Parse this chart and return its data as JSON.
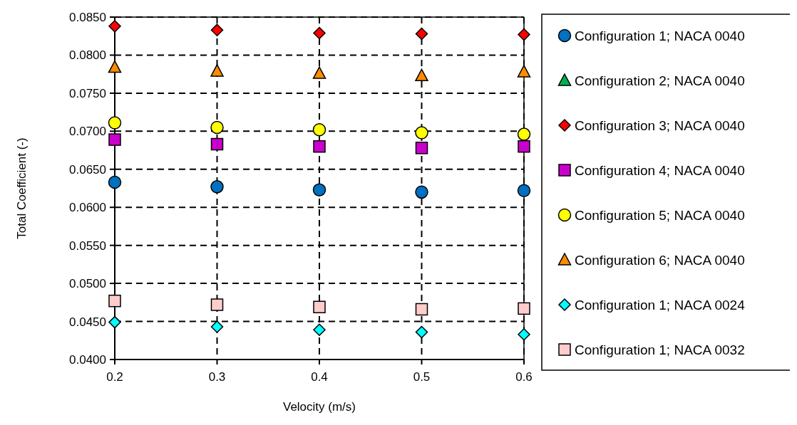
{
  "chart_data": {
    "type": "scatter",
    "xlabel": "Velocity (m/s)",
    "ylabel": "Total Coefficient (-)",
    "x": [
      0.2,
      0.3,
      0.4,
      0.5,
      0.6
    ],
    "xlim": [
      0.2,
      0.6
    ],
    "xticks": [
      0.2,
      0.3,
      0.4,
      0.5,
      0.6
    ],
    "ylim": [
      0.04,
      0.085
    ],
    "yticks": [
      {
        "value": 0.04,
        "label": "0.0400"
      },
      {
        "value": 0.045,
        "label": "0.0450"
      },
      {
        "value": 0.05,
        "label": "0.0500"
      },
      {
        "value": 0.055,
        "label": "0.0550"
      },
      {
        "value": 0.06,
        "label": "0.0600"
      },
      {
        "value": 0.065,
        "label": "0.0650"
      },
      {
        "value": 0.07,
        "label": "0.0700"
      },
      {
        "value": 0.075,
        "label": "0.0750"
      },
      {
        "value": 0.08,
        "label": "0.0800"
      },
      {
        "value": 0.085,
        "label": "0.0850"
      }
    ],
    "grid": true,
    "legend": "right",
    "series": [
      {
        "name": "Configuration 1; NACA 0040",
        "color": "#0070c0",
        "marker": "circle",
        "values": [
          0.0633,
          0.0627,
          0.0623,
          0.062,
          0.0622
        ]
      },
      {
        "name": "Configuration 2; NACA 0040",
        "color": "#00b050",
        "marker": "triangle",
        "values": [
          null,
          null,
          null,
          null,
          null
        ]
      },
      {
        "name": "Configuration 3; NACA 0040",
        "color": "#ff0000",
        "marker": "diamond",
        "values": [
          0.0838,
          0.0833,
          0.0829,
          0.0828,
          0.0827
        ]
      },
      {
        "name": "Configuration 4; NACA 0040",
        "color": "#cc00cc",
        "marker": "square",
        "values": [
          0.0689,
          0.0683,
          0.068,
          0.0678,
          0.068
        ]
      },
      {
        "name": "Configuration 5; NACA 0040",
        "color": "#ffff00",
        "marker": "circle",
        "values": [
          0.0711,
          0.0705,
          0.0702,
          0.0698,
          0.0696
        ]
      },
      {
        "name": "Configuration 6; NACA 0040",
        "color": "#ff8c00",
        "marker": "triangle",
        "values": [
          0.0784,
          0.0779,
          0.0776,
          0.0773,
          0.0778
        ]
      },
      {
        "name": "Configuration 1; NACA 0024",
        "color": "#00ffff",
        "marker": "diamond",
        "values": [
          0.0449,
          0.0443,
          0.0439,
          0.0436,
          0.0433
        ]
      },
      {
        "name": "Configuration 1; NACA 0032",
        "color": "#ffcccc",
        "marker": "square",
        "values": [
          0.0477,
          0.0472,
          0.0469,
          0.0466,
          0.0467
        ]
      }
    ]
  }
}
